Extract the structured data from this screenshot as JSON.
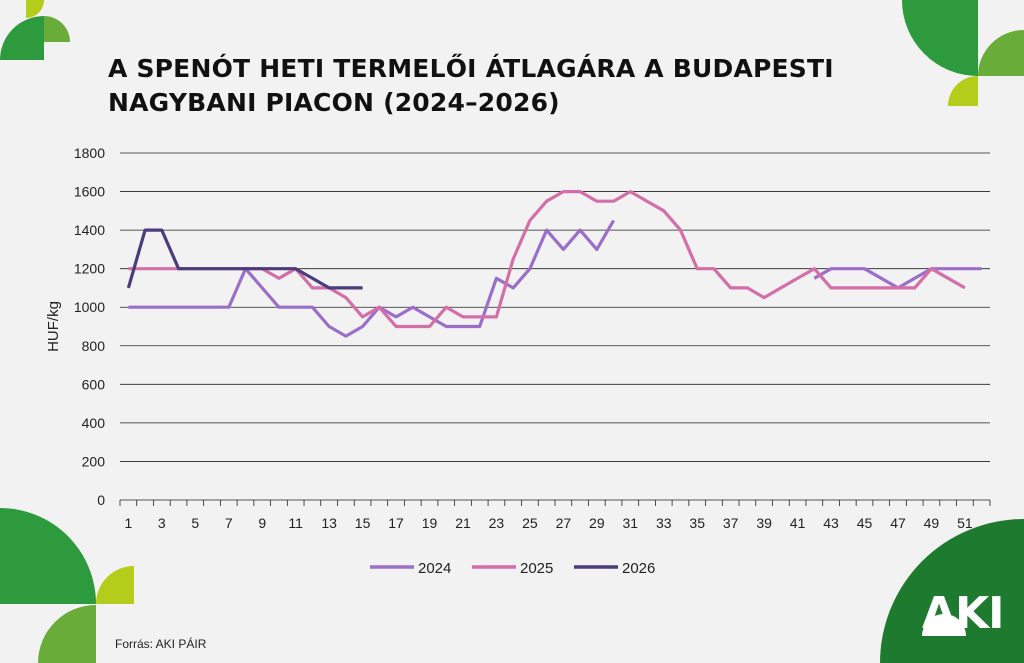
{
  "title_lines": [
    "A SPENÓT HETI TERMELŐI ÁTLAGÁRA A BUDAPESTI",
    "NAGYBANI PIACON (2024–2026)"
  ],
  "source": "Forrás: AKI PÁIR",
  "logo": "AKI",
  "colors": {
    "green_dark": "#2e9a3e",
    "green_mid": "#6aac3a",
    "green_light": "#b4cc1a",
    "green_logo": "#1e7a2e"
  },
  "chart_data": {
    "type": "line",
    "title": "A SPENÓT HETI TERMELŐI ÁTLAGÁRA A BUDAPESTI NAGYBANI PIACON (2024–2026)",
    "ylabel": "HUF/kg",
    "xlabel": "",
    "ylim": [
      0,
      1800
    ],
    "yticks": [
      0,
      200,
      400,
      600,
      800,
      1000,
      1200,
      1400,
      1600,
      1800
    ],
    "xticks": [
      1,
      3,
      5,
      7,
      9,
      11,
      13,
      15,
      17,
      19,
      21,
      23,
      25,
      27,
      29,
      31,
      33,
      35,
      37,
      39,
      41,
      43,
      45,
      47,
      49,
      51
    ],
    "xlim": [
      1,
      52
    ],
    "grid": true,
    "legend_position": "bottom",
    "series": [
      {
        "name": "2024",
        "color": "#9b6fc9",
        "values": [
          1000,
          1000,
          1000,
          1000,
          1000,
          1000,
          1000,
          1200,
          1100,
          1000,
          1000,
          1000,
          900,
          850,
          900,
          1000,
          950,
          1000,
          950,
          900,
          900,
          900,
          1150,
          1100,
          1200,
          1400,
          1300,
          1400,
          1300,
          1450,
          null,
          null,
          null,
          null,
          null,
          null,
          null,
          null,
          null,
          null,
          null,
          1150,
          1200,
          1200,
          1200,
          1150,
          1100,
          1150,
          1200,
          1200,
          1200,
          1200
        ]
      },
      {
        "name": "2025",
        "color": "#d46ea8",
        "values": [
          1200,
          1200,
          1200,
          1200,
          1200,
          1200,
          1200,
          1200,
          1200,
          1150,
          1200,
          1100,
          1100,
          1050,
          950,
          1000,
          900,
          900,
          900,
          1000,
          950,
          950,
          950,
          1250,
          1450,
          1550,
          1600,
          1600,
          1550,
          1550,
          1600,
          1550,
          1500,
          1400,
          1200,
          1200,
          1100,
          1100,
          1050,
          1100,
          1150,
          1200,
          1100,
          1100,
          1100,
          1100,
          1100,
          1100,
          1200,
          1150,
          1100,
          null
        ]
      },
      {
        "name": "2026",
        "color": "#4a3d7a",
        "values": [
          1100,
          1400,
          1400,
          1200,
          1200,
          1200,
          1200,
          1200,
          1200,
          1200,
          1200,
          1150,
          1100,
          1100,
          1100
        ]
      }
    ]
  }
}
